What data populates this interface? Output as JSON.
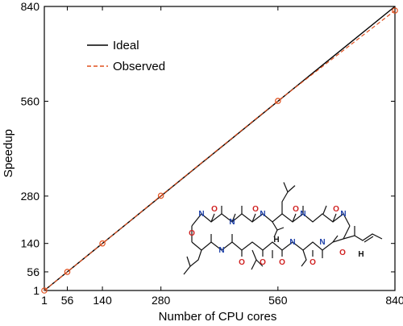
{
  "chart_data": {
    "type": "line",
    "title": "",
    "xlabel": "Number of CPU cores",
    "ylabel": "Speedup",
    "xlim": [
      1,
      840
    ],
    "ylim": [
      1,
      840
    ],
    "xticks": [
      1,
      56,
      140,
      280,
      560,
      840
    ],
    "yticks": [
      1,
      56,
      140,
      280,
      560,
      840
    ],
    "grid": false,
    "legend_position": "top-left",
    "series": [
      {
        "name": "Ideal",
        "style": "solid",
        "color": "#000000",
        "x": [
          1,
          840
        ],
        "y": [
          1,
          840
        ]
      },
      {
        "name": "Observed",
        "style": "dashed",
        "color": "#e0501e",
        "marker": "circle",
        "x": [
          1,
          56,
          140,
          280,
          560,
          840
        ],
        "y": [
          1,
          56,
          140,
          281,
          561,
          828
        ]
      }
    ]
  }
}
